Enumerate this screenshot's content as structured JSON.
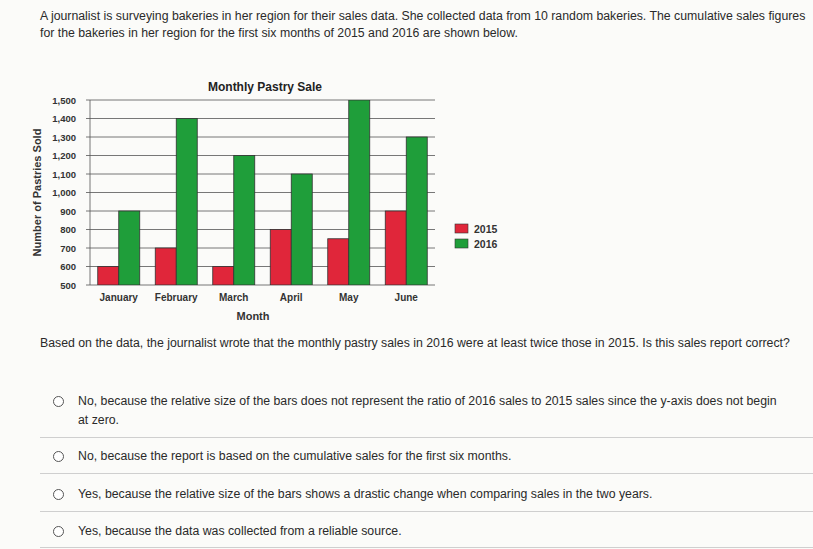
{
  "intro": "A journalist is surveying bakeries in her region for their sales data. She collected data from 10 random bakeries. The cumulative sales figures for the bakeries in her region for the first six months of 2015 and 2016 are shown below.",
  "chart_data": {
    "type": "bar",
    "title": "Monthly Pastry Sale",
    "x_label": "Month",
    "y_label": "Number of Pastries Sold",
    "categories": [
      "January",
      "February",
      "March",
      "April",
      "May",
      "June"
    ],
    "series": [
      {
        "name": "2015",
        "color": "#e0263a",
        "values": [
          600,
          700,
          600,
          800,
          750,
          900
        ]
      },
      {
        "name": "2016",
        "color": "#1f9e3a",
        "values": [
          900,
          1400,
          1200,
          1100,
          1500,
          1300
        ]
      }
    ],
    "ylim": [
      500,
      1500
    ],
    "yticks": [
      500,
      600,
      700,
      800,
      900,
      {
        "value": 1000,
        "label": "1,000"
      },
      {
        "value": 1100,
        "label": "1,100"
      },
      {
        "value": 1200,
        "label": "1,200"
      },
      {
        "value": 1300,
        "label": "1,300"
      },
      {
        "value": 1400,
        "label": "1,400"
      },
      {
        "value": 1500,
        "label": "1,500"
      }
    ],
    "grid": true,
    "legend": "right"
  },
  "question": "Based on the data, the journalist wrote that the monthly pastry sales in 2016 were at least twice those in 2015. Is this sales report correct?",
  "options": [
    "No, because the relative size of the bars does not represent the ratio of 2016 sales to 2015 sales since the y-axis does not begin at zero.",
    "No, because the report is based on the cumulative sales for the first six months.",
    "Yes, because the relative size of the bars shows a drastic change when comparing sales in the two years.",
    "Yes, because the data was collected from a reliable source."
  ]
}
